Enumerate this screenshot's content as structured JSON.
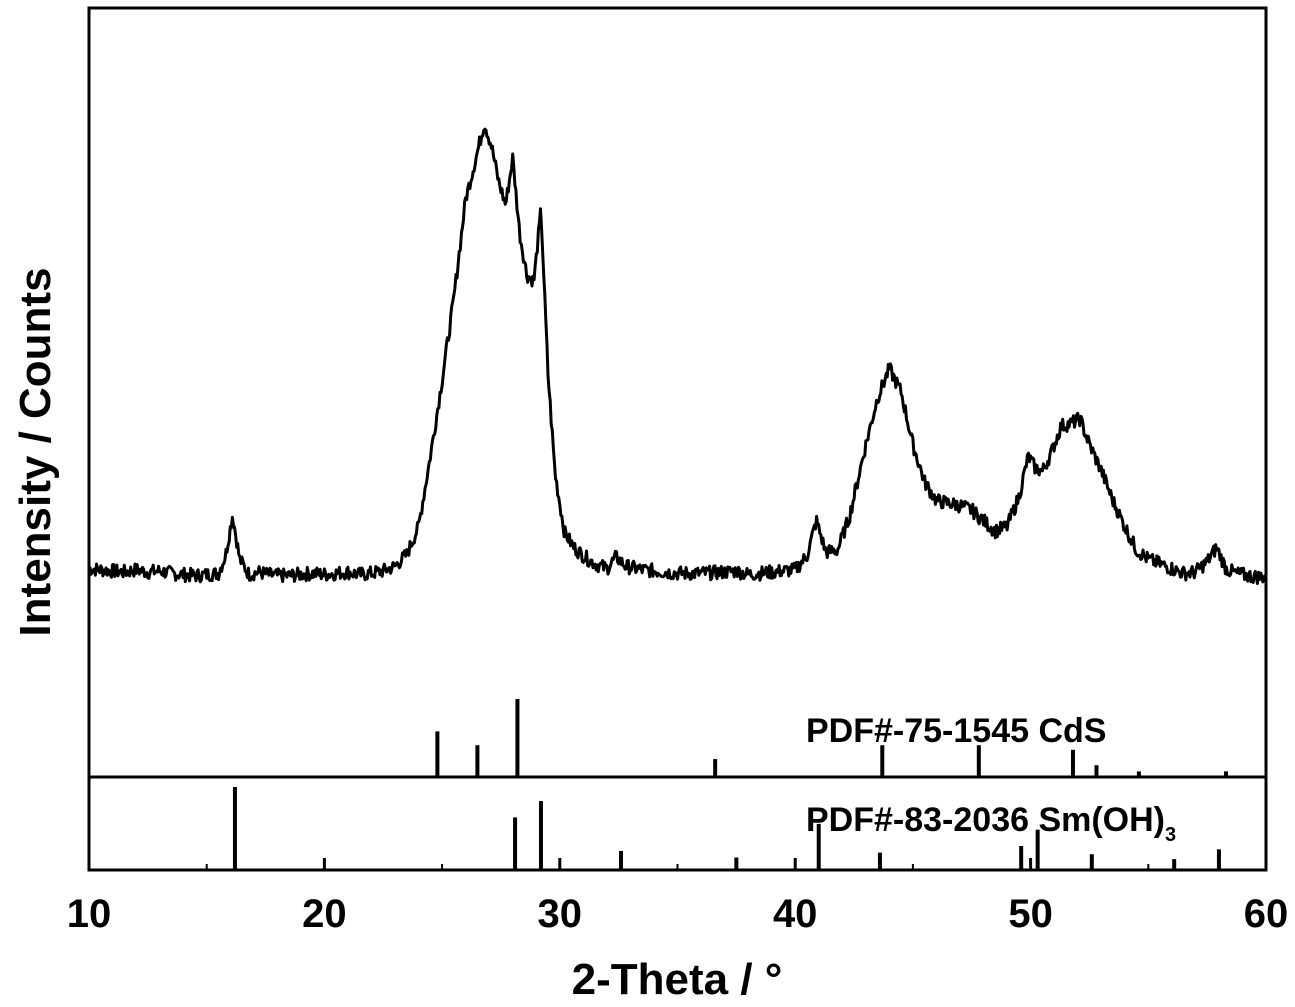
{
  "chart_data": {
    "type": "line",
    "xlabel": "2-Theta / °",
    "ylabel": "Intensity / Counts",
    "xlim": [
      10,
      60
    ],
    "xticks": [
      "10",
      "20",
      "30",
      "40",
      "50",
      "60"
    ],
    "grid": false,
    "y_tick_labels": false,
    "series": [
      {
        "x": [
          10,
          10.5,
          11,
          11.5,
          12,
          12.5,
          13,
          13.5,
          14,
          14.5,
          15,
          15.5,
          15.8,
          16.1,
          16.4,
          16.8,
          17.2,
          17.6,
          18,
          18.5,
          19,
          19.5,
          20,
          20.5,
          21,
          21.5,
          22,
          22.5,
          23,
          23.5,
          24,
          24.5,
          25,
          25.5,
          26,
          26.5,
          26.8,
          27.1,
          27.4,
          27.7,
          28.0,
          28.3,
          28.6,
          28.9,
          29.2,
          29.5,
          29.8,
          30.2,
          30.6,
          31,
          31.5,
          32,
          32.4,
          32.8,
          33.5,
          34,
          35,
          36,
          37,
          37.5,
          38,
          39,
          40,
          40.5,
          40.9,
          41.3,
          41.8,
          42.3,
          43,
          43.5,
          44,
          44.5,
          45,
          45.5,
          46,
          46.5,
          47,
          47.5,
          48,
          48.5,
          49,
          49.5,
          49.9,
          50.2,
          50.5,
          50.9,
          51.3,
          51.7,
          52.1,
          52.5,
          53,
          53.5,
          54,
          54.5,
          55,
          55.5,
          56,
          56.5,
          57,
          57.5,
          57.9,
          58.3,
          58.7,
          59.2,
          59.6,
          60
        ],
        "y": [
          14,
          13,
          12,
          11,
          13,
          11,
          12,
          10,
          9,
          8,
          9,
          10,
          25,
          60,
          22,
          9,
          11,
          9,
          8,
          8,
          9,
          10,
          9,
          10,
          11,
          9,
          10,
          12,
          16,
          26,
          50,
          110,
          175,
          245,
          330,
          370,
          395,
          375,
          345,
          325,
          365,
          300,
          265,
          260,
          320,
          180,
          95,
          45,
          32,
          25,
          18,
          14,
          24,
          16,
          13,
          12,
          10,
          10,
          11,
          12,
          9,
          11,
          13,
          25,
          55,
          28,
          30,
          58,
          120,
          160,
          185,
          165,
          120,
          88,
          72,
          70,
          68,
          64,
          55,
          46,
          50,
          75,
          110,
          100,
          97,
          114,
          136,
          138,
          142,
          120,
          98,
          72,
          50,
          30,
          22,
          18,
          14,
          10,
          11,
          20,
          32,
          14,
          10,
          8,
          7,
          7
        ]
      }
    ],
    "reference_patterns": [
      {
        "label": "PDF#-75-1545 CdS",
        "peaks": [
          {
            "x": 24.8,
            "intensity": 58
          },
          {
            "x": 26.5,
            "intensity": 40
          },
          {
            "x": 28.2,
            "intensity": 100
          },
          {
            "x": 36.6,
            "intensity": 22
          },
          {
            "x": 43.7,
            "intensity": 40
          },
          {
            "x": 47.8,
            "intensity": 40
          },
          {
            "x": 51.8,
            "intensity": 34
          },
          {
            "x": 52.8,
            "intensity": 14
          },
          {
            "x": 54.6,
            "intensity": 6
          },
          {
            "x": 58.3,
            "intensity": 6
          }
        ]
      },
      {
        "label": "PDF#-83-2036 Sm(OH)",
        "label_subscript": "3",
        "peaks": [
          {
            "x": 16.2,
            "intensity": 100
          },
          {
            "x": 28.1,
            "intensity": 63
          },
          {
            "x": 29.2,
            "intensity": 83
          },
          {
            "x": 32.6,
            "intensity": 22
          },
          {
            "x": 37.5,
            "intensity": 14
          },
          {
            "x": 41.0,
            "intensity": 55
          },
          {
            "x": 43.6,
            "intensity": 20
          },
          {
            "x": 49.6,
            "intensity": 28
          },
          {
            "x": 50.3,
            "intensity": 48
          },
          {
            "x": 52.6,
            "intensity": 18
          },
          {
            "x": 56.1,
            "intensity": 12
          },
          {
            "x": 58.0,
            "intensity": 24
          }
        ]
      }
    ]
  }
}
